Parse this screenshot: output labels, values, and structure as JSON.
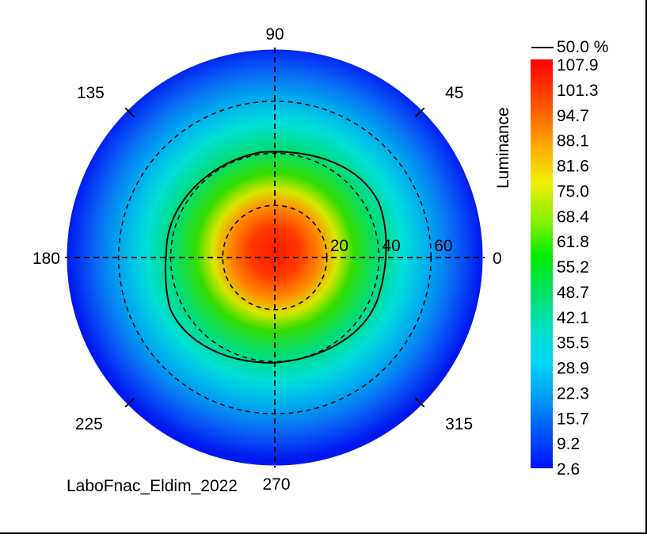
{
  "chart_data": {
    "type": "heatmap",
    "subtype": "polar-conoscopic",
    "footer_label": "LaboFnac_Eldim_2022",
    "azimuth_labels": [
      "0",
      "45",
      "90",
      "135",
      "180",
      "225",
      "270",
      "315"
    ],
    "radial_labels": [
      "20",
      "40",
      "60"
    ],
    "radial_rings": [
      20,
      40,
      60
    ],
    "max_angle": 80,
    "colorbar": {
      "title": "Luminance",
      "contour_label": "50.0 %",
      "ticks": [
        "107.9",
        "101.3",
        "94.7",
        "88.1",
        "81.6",
        "75.0",
        "68.4",
        "61.8",
        "55.2",
        "48.7",
        "42.1",
        "35.5",
        "28.9",
        "22.3",
        "15.7",
        "9.2",
        "2.6"
      ],
      "min": 2.6,
      "max": 107.9
    },
    "grid": true,
    "contour_level_percent": 50.0,
    "peak_value": 107.9
  }
}
